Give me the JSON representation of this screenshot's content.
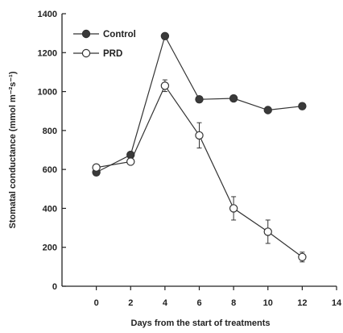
{
  "chart_data": {
    "type": "line",
    "title": "",
    "xlabel": "Days from the start of treatments",
    "ylabel": "Stomatal conductance (mmol m⁻²s⁻¹)",
    "xlim": [
      -2,
      14
    ],
    "ylim": [
      0,
      1400
    ],
    "xticks": [
      0,
      2,
      4,
      6,
      8,
      10,
      12,
      14
    ],
    "yticks": [
      0,
      200,
      400,
      600,
      800,
      1000,
      1200,
      1400
    ],
    "grid": false,
    "legend_position": "top-left",
    "series": [
      {
        "name": "Control",
        "marker": "filled-circle",
        "color": "#333333",
        "x": [
          0,
          2,
          4,
          6,
          8,
          10,
          12
        ],
        "y": [
          585,
          675,
          1285,
          960,
          965,
          905,
          925
        ]
      },
      {
        "name": "PRD",
        "marker": "open-circle",
        "color": "#333333",
        "x": [
          0,
          2,
          4,
          6,
          8,
          10,
          12
        ],
        "y": [
          610,
          640,
          1030,
          775,
          400,
          280,
          150
        ],
        "error": [
          15,
          15,
          30,
          65,
          60,
          60,
          25
        ]
      }
    ]
  }
}
